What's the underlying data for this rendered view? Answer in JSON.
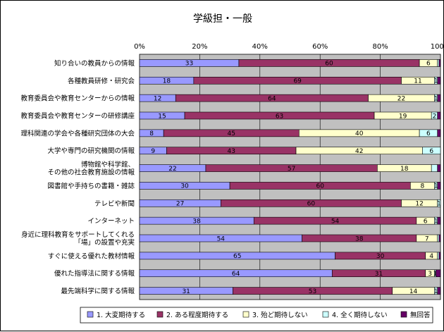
{
  "chart_data": {
    "type": "bar",
    "stacked": true,
    "orientation": "horizontal",
    "title": "学級担・一般",
    "xlim": [
      0,
      100
    ],
    "x_ticks": [
      "0%",
      "20%",
      "40%",
      "60%",
      "80%",
      "100%"
    ],
    "grid": true,
    "legend_position": "bottom",
    "categories": [
      [
        "知り合いの教員からの情報"
      ],
      [
        "各種教員研修・研究会"
      ],
      [
        "教育委員会や教育センターからの情報"
      ],
      [
        "教育委員会や教育センターの研修講座"
      ],
      [
        "理科関連の学会や各種研究団体の大会"
      ],
      [
        "大学や専門の研究機関の情報"
      ],
      [
        "博物館や科学館、",
        "その他の社会教育施設の情報"
      ],
      [
        "図書館や手持ちの書籍・雑誌"
      ],
      [
        "テレビや新聞"
      ],
      [
        "インターネット"
      ],
      [
        "身近に理科教育をサポートしてくれる",
        "「場」の設置や充実"
      ],
      [
        "すぐに使える優れた教材情報"
      ],
      [
        "優れた指導法に関する情報"
      ],
      [
        "最先端科学に関する情報"
      ]
    ],
    "series": [
      {
        "name": "1. 大変期待する",
        "color": "#9999ff",
        "values": [
          33,
          18,
          12,
          15,
          8,
          9,
          22,
          30,
          27,
          38,
          54,
          65,
          64,
          31
        ],
        "labels": [
          "33",
          "18",
          "12",
          "15",
          "8",
          "9",
          "22",
          "30",
          "27",
          "38",
          "54",
          "65",
          "64",
          "31"
        ]
      },
      {
        "name": "2. ある程度期待する",
        "color": "#993366",
        "values": [
          60,
          69,
          64,
          63,
          45,
          43,
          57,
          60,
          60,
          54,
          38,
          30,
          31,
          53
        ],
        "labels": [
          "60",
          "69",
          "64",
          "63",
          "45",
          "43",
          "57",
          "60",
          "60",
          "54",
          "38",
          "30",
          "31",
          "53"
        ]
      },
      {
        "name": "3. 殆ど期待しない",
        "color": "#ffffcc",
        "values": [
          6,
          11,
          22,
          19,
          40,
          42,
          18,
          8,
          12,
          6,
          7,
          4,
          3,
          14
        ],
        "labels": [
          "6",
          "11",
          "22",
          "19",
          "40",
          "42",
          "18",
          "8",
          "12",
          "6",
          "7",
          "4",
          "3",
          "14"
        ]
      },
      {
        "name": "4. 全く期待しない",
        "color": "#ccffff",
        "values": [
          0.5,
          1,
          1,
          2,
          6,
          6,
          2,
          1,
          1,
          1,
          0.5,
          0.5,
          0.5,
          1
        ],
        "labels": [
          "",
          "1",
          "1",
          "2",
          "6",
          "6",
          "",
          "1",
          "1",
          "1",
          "",
          "",
          "1",
          "1"
        ]
      },
      {
        "name": "無回答",
        "color": "#660066",
        "values": [
          0.5,
          1,
          1,
          1,
          1,
          0,
          1,
          1,
          0,
          1,
          0.5,
          0.5,
          1.5,
          1
        ],
        "labels": [
          "",
          "",
          "",
          "",
          "",
          "",
          "",
          "",
          "",
          "",
          "",
          "",
          "",
          ""
        ]
      }
    ]
  }
}
